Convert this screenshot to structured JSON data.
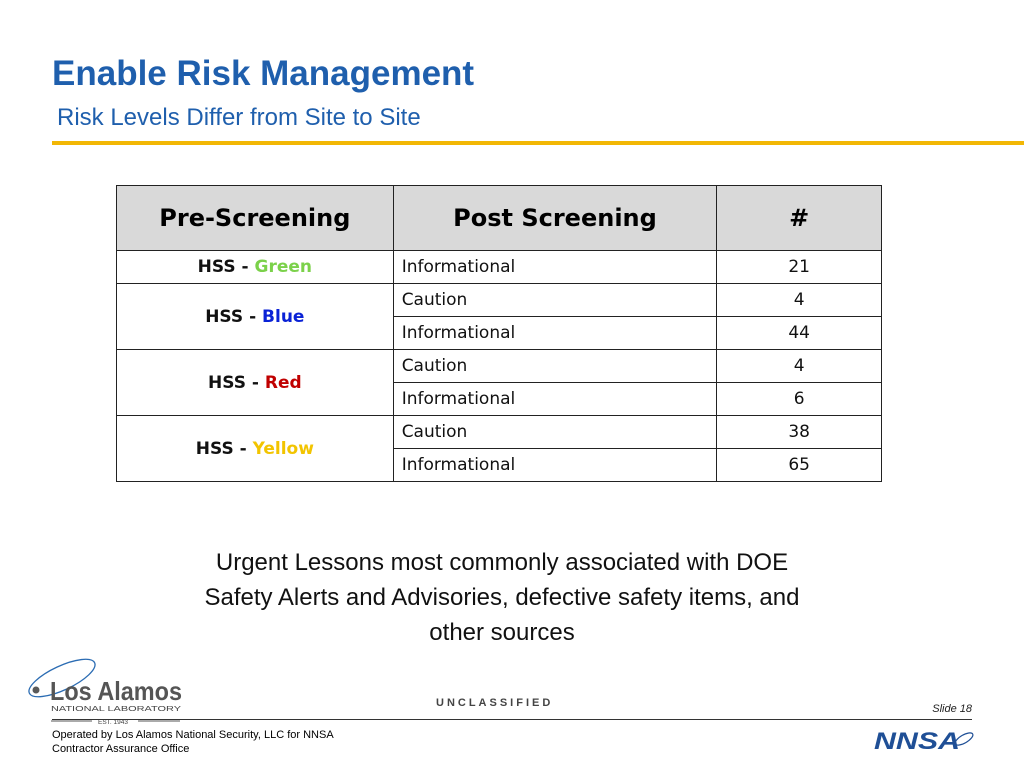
{
  "slide": {
    "title": "Enable Risk Management",
    "subtitle": "Risk Levels Differ from Site to Site",
    "accent_color": "#f2b705",
    "title_color": "#1f5fad"
  },
  "table": {
    "headers": [
      "Pre-Screening",
      "Post Screening",
      "#"
    ],
    "groups": [
      {
        "prefix": "HSS - ",
        "level": "Green",
        "level_color": "#7bd14a",
        "rows": [
          {
            "post": "Informational",
            "count": "21"
          }
        ]
      },
      {
        "prefix": "HSS - ",
        "level": "Blue",
        "level_color": "#0a22d6",
        "rows": [
          {
            "post": "Caution",
            "count": "4"
          },
          {
            "post": "Informational",
            "count": "44"
          }
        ]
      },
      {
        "prefix": "HSS - ",
        "level": "Red",
        "level_color": "#c00000",
        "rows": [
          {
            "post": "Caution",
            "count": "4"
          },
          {
            "post": "Informational",
            "count": "6"
          }
        ]
      },
      {
        "prefix": "HSS - ",
        "level": "Yellow",
        "level_color": "#f2c400",
        "rows": [
          {
            "post": "Caution",
            "count": "38"
          },
          {
            "post": "Informational",
            "count": "65"
          }
        ]
      }
    ]
  },
  "note": "Urgent Lessons most commonly associated with DOE Safety Alerts and Advisories, defective safety items, and other sources",
  "footer": {
    "classification": "UNCLASSIFIED",
    "slide_number": "Slide 18",
    "operated_by": "Operated by Los Alamos National Security, LLC for NNSA",
    "office": "Contractor Assurance Office"
  },
  "logos": {
    "lanl": {
      "name": "Los Alamos",
      "tagline": "NATIONAL LABORATORY",
      "est": "EST. 1943",
      "icon": "lanl-logo"
    },
    "nnsa": {
      "text": "NNSA",
      "icon": "nnsa-logo"
    }
  }
}
